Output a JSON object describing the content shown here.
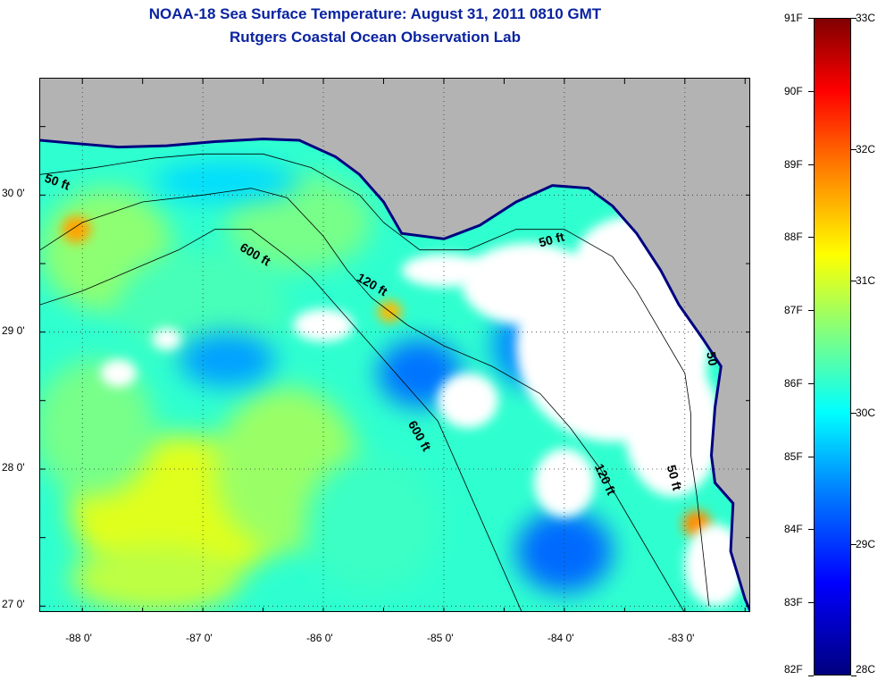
{
  "title": {
    "line1": "NOAA-18 Sea Surface Temperature:  August 31, 2011 0810 GMT",
    "line2": "Rutgers Coastal Ocean Observation Lab"
  },
  "map": {
    "lon_range": [
      -88.35,
      -82.45
    ],
    "lat_range": [
      26.95,
      30.85
    ],
    "lat_ticks": [
      {
        "value": 30,
        "label": "30 0'"
      },
      {
        "value": 29,
        "label": "29 0'"
      },
      {
        "value": 28,
        "label": "28 0'"
      },
      {
        "value": 27,
        "label": "27 0'"
      }
    ],
    "lon_ticks": [
      {
        "value": -88,
        "label": "-88 0'"
      },
      {
        "value": -87,
        "label": "-87 0'"
      },
      {
        "value": -86,
        "label": "-86 0'"
      },
      {
        "value": -85,
        "label": "-85 0'"
      },
      {
        "value": -84,
        "label": "-84 0'"
      },
      {
        "value": -83,
        "label": "-83 0'"
      }
    ],
    "land_color": "#b3b3b3",
    "cloud_color": "#ffffff",
    "coastline": [
      [
        -88.35,
        30.4
      ],
      [
        -88.1,
        30.38
      ],
      [
        -87.7,
        30.35
      ],
      [
        -87.3,
        30.36
      ],
      [
        -86.9,
        30.39
      ],
      [
        -86.5,
        30.41
      ],
      [
        -86.2,
        30.4
      ],
      [
        -85.9,
        30.28
      ],
      [
        -85.7,
        30.15
      ],
      [
        -85.5,
        29.95
      ],
      [
        -85.35,
        29.72
      ],
      [
        -85.0,
        29.68
      ],
      [
        -84.7,
        29.78
      ],
      [
        -84.4,
        29.95
      ],
      [
        -84.1,
        30.07
      ],
      [
        -83.8,
        30.05
      ],
      [
        -83.6,
        29.92
      ],
      [
        -83.4,
        29.72
      ],
      [
        -83.2,
        29.45
      ],
      [
        -83.05,
        29.2
      ],
      [
        -82.85,
        28.95
      ],
      [
        -82.7,
        28.75
      ],
      [
        -82.75,
        28.45
      ],
      [
        -82.78,
        28.1
      ],
      [
        -82.75,
        27.9
      ],
      [
        -82.6,
        27.75
      ],
      [
        -82.62,
        27.4
      ],
      [
        -82.5,
        27.05
      ],
      [
        -82.45,
        26.95
      ]
    ],
    "contours": {
      "50 ft": [
        [
          -88.35,
          30.15
        ],
        [
          -87.9,
          30.2
        ],
        [
          -87.4,
          30.27
        ],
        [
          -87.0,
          30.3
        ],
        [
          -86.5,
          30.3
        ],
        [
          -86.1,
          30.2
        ],
        [
          -85.7,
          30.0
        ],
        [
          -85.5,
          29.8
        ],
        [
          -85.2,
          29.6
        ],
        [
          -84.8,
          29.6
        ],
        [
          -84.4,
          29.75
        ],
        [
          -84.0,
          29.75
        ],
        [
          -83.6,
          29.55
        ],
        [
          -83.4,
          29.3
        ],
        [
          -83.2,
          29.0
        ],
        [
          -83.0,
          28.7
        ],
        [
          -82.95,
          28.4
        ],
        [
          -82.95,
          28.1
        ],
        [
          -82.9,
          27.8
        ],
        [
          -82.85,
          27.4
        ],
        [
          -82.8,
          27.0
        ]
      ],
      "120 ft": [
        [
          -88.35,
          29.6
        ],
        [
          -88.0,
          29.8
        ],
        [
          -87.5,
          29.95
        ],
        [
          -87.0,
          30.0
        ],
        [
          -86.6,
          30.05
        ],
        [
          -86.3,
          29.98
        ],
        [
          -86.0,
          29.7
        ],
        [
          -85.8,
          29.45
        ],
        [
          -85.6,
          29.25
        ],
        [
          -85.3,
          29.05
        ],
        [
          -85.0,
          28.9
        ],
        [
          -84.6,
          28.75
        ],
        [
          -84.2,
          28.55
        ],
        [
          -83.95,
          28.3
        ],
        [
          -83.7,
          28.0
        ],
        [
          -83.5,
          27.7
        ],
        [
          -83.3,
          27.4
        ],
        [
          -83.1,
          27.1
        ],
        [
          -83.0,
          26.95
        ]
      ],
      "600 ft": [
        [
          -88.35,
          29.2
        ],
        [
          -88.0,
          29.3
        ],
        [
          -87.6,
          29.45
        ],
        [
          -87.2,
          29.6
        ],
        [
          -86.9,
          29.75
        ],
        [
          -86.6,
          29.75
        ],
        [
          -86.3,
          29.55
        ],
        [
          -86.1,
          29.4
        ],
        [
          -85.9,
          29.2
        ],
        [
          -85.6,
          28.9
        ],
        [
          -85.3,
          28.6
        ],
        [
          -85.05,
          28.35
        ],
        [
          -84.9,
          28.05
        ],
        [
          -84.75,
          27.75
        ],
        [
          -84.6,
          27.45
        ],
        [
          -84.45,
          27.15
        ],
        [
          -84.35,
          26.95
        ]
      ]
    },
    "contour_labels": [
      {
        "text": "50 ft",
        "lon": -88.32,
        "lat": 30.1,
        "rot": 20
      },
      {
        "text": "600 ft",
        "lon": -86.7,
        "lat": 29.6,
        "rot": 30
      },
      {
        "text": "120 ft",
        "lon": -85.73,
        "lat": 29.38,
        "rot": 30
      },
      {
        "text": "50 ft",
        "lon": -84.2,
        "lat": 29.62,
        "rot": -15
      },
      {
        "text": "600 ft",
        "lon": -85.3,
        "lat": 28.33,
        "rot": 60
      },
      {
        "text": "120 ft",
        "lon": -83.75,
        "lat": 28.02,
        "rot": 65
      },
      {
        "text": "50 ft",
        "lon": -83.15,
        "lat": 28.02,
        "rot": 75
      },
      {
        "text": "50",
        "lon": -82.82,
        "lat": 28.85,
        "rot": 80
      }
    ],
    "sst_patches": [
      {
        "lon": -87.8,
        "lat": 29.6,
        "rx": 0.55,
        "ry": 0.45,
        "temp": 86.8
      },
      {
        "lon": -87.0,
        "lat": 29.2,
        "rx": 0.7,
        "ry": 0.4,
        "temp": 86.2
      },
      {
        "lon": -86.2,
        "lat": 29.8,
        "rx": 0.6,
        "ry": 0.35,
        "temp": 86.6
      },
      {
        "lon": -87.2,
        "lat": 27.7,
        "rx": 0.9,
        "ry": 0.55,
        "temp": 87.5
      },
      {
        "lon": -87.9,
        "lat": 28.3,
        "rx": 0.5,
        "ry": 0.5,
        "temp": 86.6
      },
      {
        "lon": -86.3,
        "lat": 28.0,
        "rx": 0.6,
        "ry": 0.6,
        "temp": 86.9
      },
      {
        "lon": -85.6,
        "lat": 27.6,
        "rx": 0.55,
        "ry": 0.5,
        "temp": 86.1
      },
      {
        "lon": -87.4,
        "lat": 27.2,
        "rx": 0.7,
        "ry": 0.25,
        "temp": 87.2
      },
      {
        "lon": -88.05,
        "lat": 29.75,
        "rx": 0.12,
        "ry": 0.1,
        "temp": 88.6
      },
      {
        "lon": -85.45,
        "lat": 29.15,
        "rx": 0.1,
        "ry": 0.08,
        "temp": 88.4
      },
      {
        "lon": -82.9,
        "lat": 27.6,
        "rx": 0.12,
        "ry": 0.1,
        "temp": 88.8
      },
      {
        "lon": -84.3,
        "lat": 28.9,
        "rx": 0.3,
        "ry": 0.3,
        "temp": 84.6
      },
      {
        "lon": -85.2,
        "lat": 28.7,
        "rx": 0.35,
        "ry": 0.25,
        "temp": 84.4
      },
      {
        "lon": -84.0,
        "lat": 27.4,
        "rx": 0.4,
        "ry": 0.3,
        "temp": 84.3
      },
      {
        "lon": -86.8,
        "lat": 28.8,
        "rx": 0.4,
        "ry": 0.2,
        "temp": 84.8
      },
      {
        "lon": -86.8,
        "lat": 30.1,
        "rx": 0.6,
        "ry": 0.15,
        "temp": 85.3
      }
    ],
    "cloud_patches": [
      {
        "lon": -83.6,
        "lat": 28.9,
        "rx": 0.8,
        "ry": 0.7
      },
      {
        "lon": -84.3,
        "lat": 29.35,
        "rx": 0.55,
        "ry": 0.3
      },
      {
        "lon": -83.4,
        "lat": 29.55,
        "rx": 0.5,
        "ry": 0.3
      },
      {
        "lon": -83.1,
        "lat": 28.3,
        "rx": 0.4,
        "ry": 0.5
      },
      {
        "lon": -82.75,
        "lat": 27.3,
        "rx": 0.25,
        "ry": 0.3
      },
      {
        "lon": -84.8,
        "lat": 28.5,
        "rx": 0.25,
        "ry": 0.2
      },
      {
        "lon": -86.0,
        "lat": 29.05,
        "rx": 0.25,
        "ry": 0.12
      },
      {
        "lon": -87.7,
        "lat": 28.7,
        "rx": 0.15,
        "ry": 0.1
      },
      {
        "lon": -87.3,
        "lat": 28.95,
        "rx": 0.12,
        "ry": 0.08
      },
      {
        "lon": -85.0,
        "lat": 29.45,
        "rx": 0.35,
        "ry": 0.12
      },
      {
        "lon": -84.0,
        "lat": 27.9,
        "rx": 0.25,
        "ry": 0.25
      }
    ]
  },
  "colorbar": {
    "range_f": [
      82,
      91
    ],
    "range_c": [
      28,
      33
    ],
    "f_labels": [
      {
        "value": 91,
        "label": "91F"
      },
      {
        "value": 90,
        "label": "90F"
      },
      {
        "value": 89,
        "label": "89F"
      },
      {
        "value": 88,
        "label": "88F"
      },
      {
        "value": 87,
        "label": "87F"
      },
      {
        "value": 86,
        "label": "86F"
      },
      {
        "value": 85,
        "label": "85F"
      },
      {
        "value": 84,
        "label": "84F"
      },
      {
        "value": 83,
        "label": "83F"
      },
      {
        "value": 82,
        "label": "82F"
      }
    ],
    "c_labels": [
      {
        "value": 33,
        "label": "33C"
      },
      {
        "value": 32,
        "label": "32C"
      },
      {
        "value": 31,
        "label": "31C"
      },
      {
        "value": 30,
        "label": "30C"
      },
      {
        "value": 29,
        "label": "29C"
      },
      {
        "value": 28,
        "label": "28C"
      }
    ]
  }
}
